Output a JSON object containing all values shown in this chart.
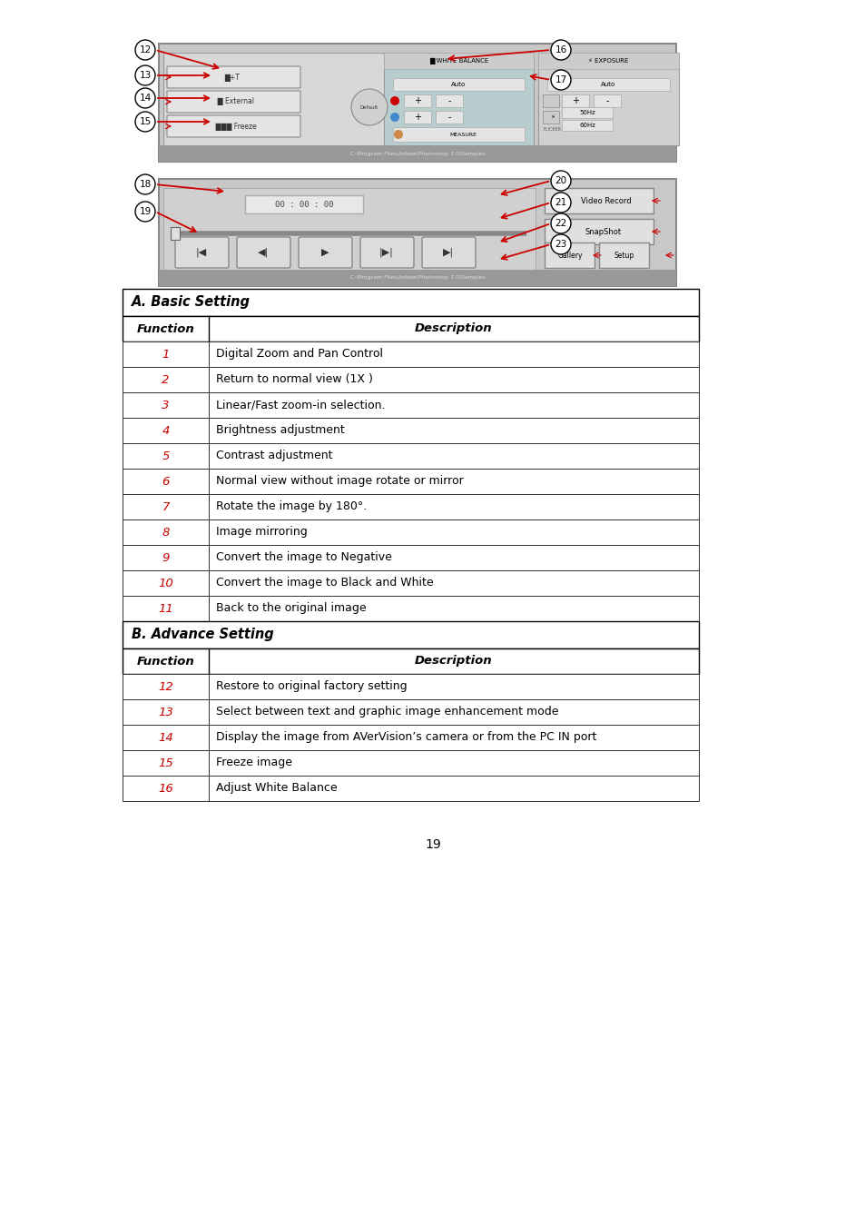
{
  "page_number": "19",
  "bg_color": "#ffffff",
  "table_basic": {
    "title": "A. Basic Setting",
    "header": [
      "Function",
      "Description"
    ],
    "rows": [
      [
        "1",
        "Digital Zoom and Pan Control"
      ],
      [
        "2",
        "Return to normal view (1X )"
      ],
      [
        "3",
        "Linear/Fast zoom-in selection."
      ],
      [
        "4",
        "Brightness adjustment"
      ],
      [
        "5",
        "Contrast adjustment"
      ],
      [
        "6",
        "Normal view without image rotate or mirror"
      ],
      [
        "7",
        "Rotate the image by 180°."
      ],
      [
        "8",
        "Image mirroring"
      ],
      [
        "9",
        "Convert the image to Negative"
      ],
      [
        "10",
        "Convert the image to Black and White"
      ],
      [
        "11",
        "Back to the original image"
      ]
    ]
  },
  "table_advance": {
    "title": "B. Advance Setting",
    "header": [
      "Function",
      "Description"
    ],
    "rows": [
      [
        "12",
        "Restore to original factory setting"
      ],
      [
        "13",
        "Select between text and graphic image enhancement mode"
      ],
      [
        "14",
        "Display the image from AVerVision’s camera or from the PC IN port"
      ],
      [
        "15",
        "Freeze image"
      ],
      [
        "16",
        "Adjust White Balance"
      ]
    ]
  },
  "red_color": "#cc0000",
  "black_color": "#000000"
}
